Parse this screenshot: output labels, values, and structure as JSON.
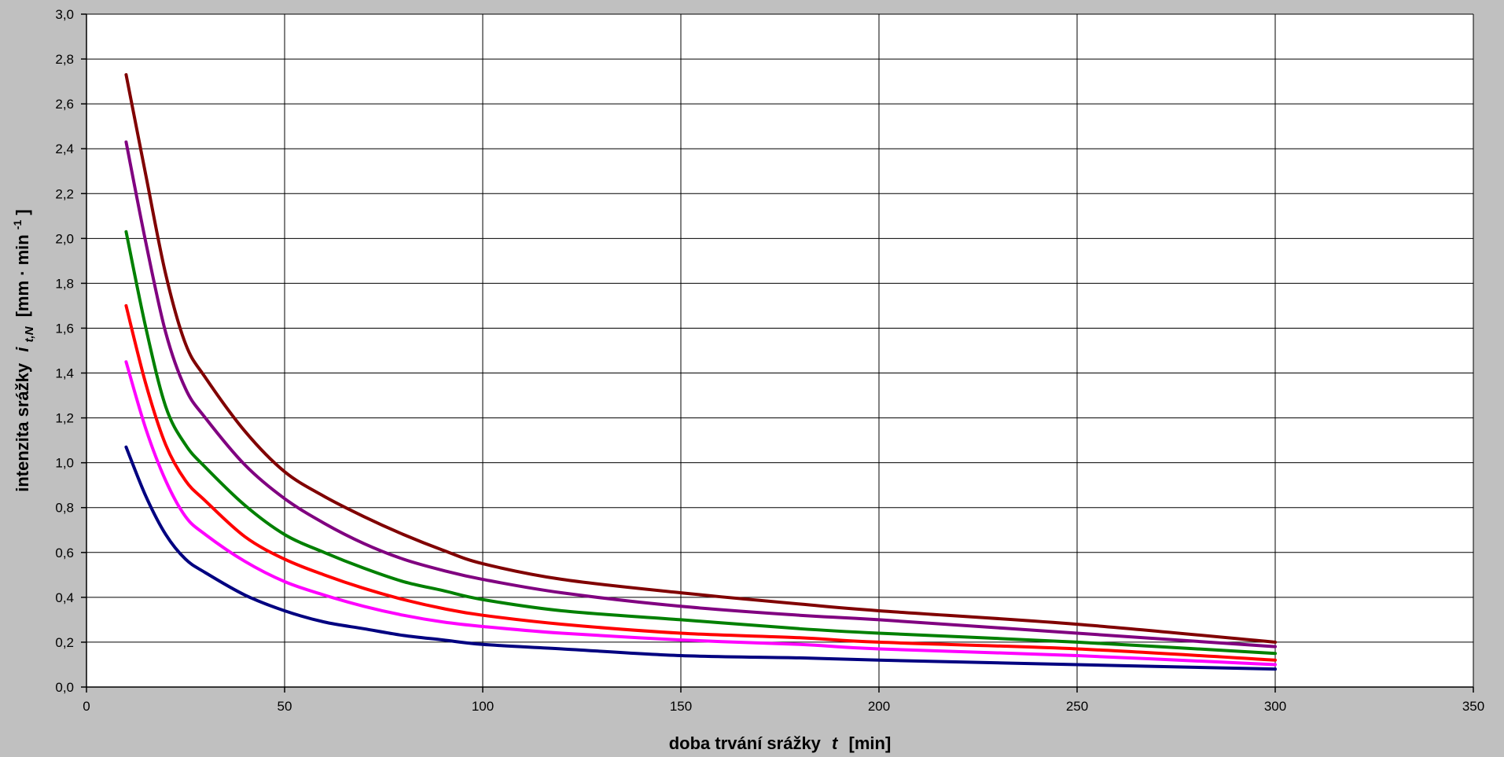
{
  "chart_data": {
    "type": "line",
    "title": "",
    "xlabel": {
      "main": "doba trvání srážky",
      "var": "t",
      "unit": "[min]"
    },
    "ylabel": {
      "main": "intenzita srážky",
      "var": "i",
      "sub": "t,N",
      "unit_pre": "[mm · min",
      "unit_sup": "-1",
      "unit_post": "]"
    },
    "xlim": [
      0,
      350
    ],
    "ylim": [
      0,
      3.0
    ],
    "x_ticks": [
      0,
      50,
      100,
      150,
      200,
      250,
      300,
      350
    ],
    "y_ticks": [
      0.0,
      0.2,
      0.4,
      0.6,
      0.8,
      1.0,
      1.2,
      1.4,
      1.6,
      1.8,
      2.0,
      2.2,
      2.4,
      2.6,
      2.8,
      3.0
    ],
    "y_tick_labels": [
      "0,0",
      "0,2",
      "0,4",
      "0,6",
      "0,8",
      "1,0",
      "1,2",
      "1,4",
      "1,6",
      "1,8",
      "2,0",
      "2,2",
      "2,4",
      "2,6",
      "2,8",
      "3,0"
    ],
    "grid": true,
    "legend": "none",
    "x": [
      10,
      15,
      20,
      25,
      30,
      40,
      50,
      60,
      70,
      80,
      90,
      100,
      120,
      150,
      180,
      200,
      250,
      300
    ],
    "series": [
      {
        "color": "#800000",
        "values": [
          2.73,
          2.28,
          1.84,
          1.53,
          1.38,
          1.14,
          0.96,
          0.85,
          0.76,
          0.68,
          0.61,
          0.55,
          0.48,
          0.42,
          0.37,
          0.34,
          0.28,
          0.2
        ]
      },
      {
        "color": "#800080",
        "values": [
          2.43,
          1.98,
          1.58,
          1.33,
          1.2,
          0.99,
          0.84,
          0.73,
          0.64,
          0.57,
          0.52,
          0.48,
          0.42,
          0.36,
          0.32,
          0.3,
          0.24,
          0.18
        ]
      },
      {
        "color": "#008000",
        "values": [
          2.03,
          1.6,
          1.25,
          1.08,
          0.98,
          0.81,
          0.68,
          0.6,
          0.53,
          0.47,
          0.43,
          0.39,
          0.34,
          0.3,
          0.26,
          0.24,
          0.2,
          0.15
        ]
      },
      {
        "color": "#ff0000",
        "values": [
          1.7,
          1.35,
          1.08,
          0.92,
          0.83,
          0.67,
          0.57,
          0.5,
          0.44,
          0.39,
          0.35,
          0.32,
          0.28,
          0.24,
          0.22,
          0.2,
          0.17,
          0.12
        ]
      },
      {
        "color": "#ff00ff",
        "values": [
          1.45,
          1.15,
          0.92,
          0.76,
          0.68,
          0.56,
          0.47,
          0.41,
          0.36,
          0.32,
          0.29,
          0.27,
          0.24,
          0.21,
          0.19,
          0.17,
          0.14,
          0.1
        ]
      },
      {
        "color": "#000080",
        "values": [
          1.07,
          0.85,
          0.68,
          0.57,
          0.51,
          0.41,
          0.34,
          0.29,
          0.26,
          0.23,
          0.21,
          0.19,
          0.17,
          0.14,
          0.13,
          0.12,
          0.1,
          0.08
        ]
      }
    ]
  }
}
